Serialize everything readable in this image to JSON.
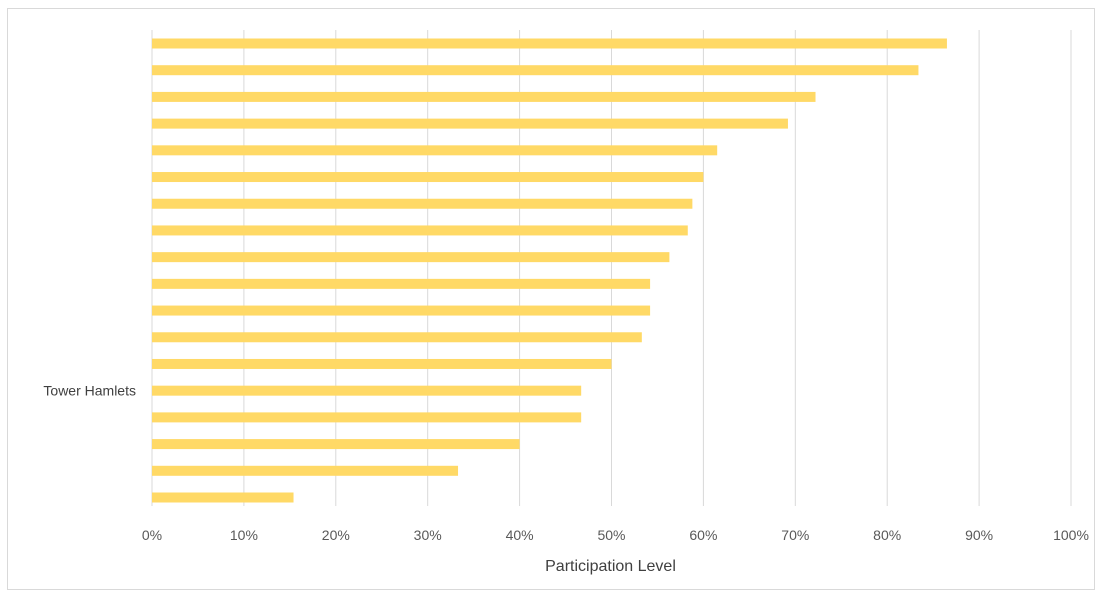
{
  "chart_data": {
    "type": "bar",
    "orientation": "horizontal",
    "categories": [
      "",
      "",
      "",
      "",
      "",
      "",
      "",
      "",
      "",
      "",
      "",
      "",
      "",
      "Tower Hamlets",
      "",
      "",
      "",
      ""
    ],
    "values": [
      0.865,
      0.834,
      0.722,
      0.692,
      0.615,
      0.6,
      0.588,
      0.583,
      0.563,
      0.542,
      0.542,
      0.533,
      0.5,
      0.467,
      0.467,
      0.4,
      0.333,
      0.154
    ],
    "xlabel": "Participation Level",
    "ylabel": "",
    "xlim": [
      0,
      1
    ],
    "xticks": [
      "0%",
      "10%",
      "20%",
      "30%",
      "40%",
      "50%",
      "60%",
      "70%",
      "80%",
      "90%",
      "100%"
    ],
    "grid": true,
    "bar_color": "#FFD966",
    "gridline_color": "#D9D9D9"
  }
}
